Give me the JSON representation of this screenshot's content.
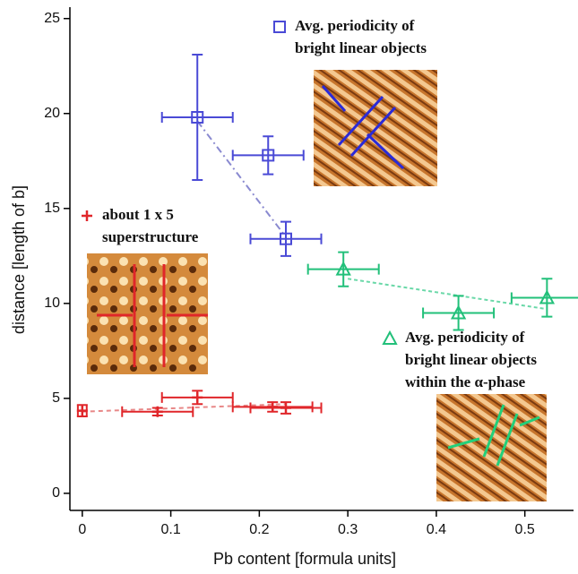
{
  "chart_data": {
    "type": "scatter",
    "x_label": "Pb content [formula units]",
    "y_label": "distance [length of b]",
    "xlim": [
      -0.014,
      0.555
    ],
    "ylim": [
      -0.9,
      25.6
    ],
    "xticks": [
      0,
      0.1,
      0.2,
      0.3,
      0.4,
      0.5
    ],
    "yticks": [
      0,
      5,
      10,
      15,
      20,
      25
    ],
    "grid": false,
    "series": [
      {
        "label": [
          "Avg. periodicity of",
          "bright linear objects"
        ],
        "color": "#4a4ad6",
        "marker": "square",
        "x": [
          0.13,
          0.21,
          0.23
        ],
        "values": [
          19.8,
          17.8,
          13.4
        ],
        "xerr": [
          0.04,
          0.04,
          0.04
        ],
        "yerr": [
          3.3,
          1.0,
          0.9
        ]
      },
      {
        "label": [
          "Avg. periodicity of",
          "bright linear objects",
          "within the α-phase"
        ],
        "color": "#22c07a",
        "marker": "triangle",
        "x": [
          0.295,
          0.425,
          0.525
        ],
        "values": [
          11.8,
          9.5,
          10.3
        ],
        "xerr": [
          0.04,
          0.04,
          0.04
        ],
        "yerr": [
          0.9,
          0.9,
          1.0
        ]
      },
      {
        "label": [
          "about 1 x 5",
          "superstructure"
        ],
        "color": "#e0262a",
        "marker": "plus",
        "x": [
          0,
          0.085,
          0.13,
          0.215,
          0.23
        ],
        "values": [
          4.35,
          4.3,
          5.05,
          4.55,
          4.5
        ],
        "xerr": [
          0.005,
          0.04,
          0.04,
          0.045,
          0.04
        ],
        "yerr": [
          0.3,
          0.2,
          0.35,
          0.25,
          0.3
        ]
      }
    ],
    "fits": [
      {
        "color": "#8a8ad0",
        "dash": "8 4 2 4",
        "x": [
          0.13,
          0.23
        ],
        "y": [
          19.6,
          13.5
        ]
      },
      {
        "color": "#6ad8a8",
        "dash": "4 3",
        "x": [
          0.3,
          0.525
        ],
        "y": [
          11.3,
          9.7
        ]
      },
      {
        "color": "#e88888",
        "dash": "5 4",
        "x": [
          0,
          0.23
        ],
        "y": [
          4.3,
          4.7
        ]
      }
    ]
  }
}
